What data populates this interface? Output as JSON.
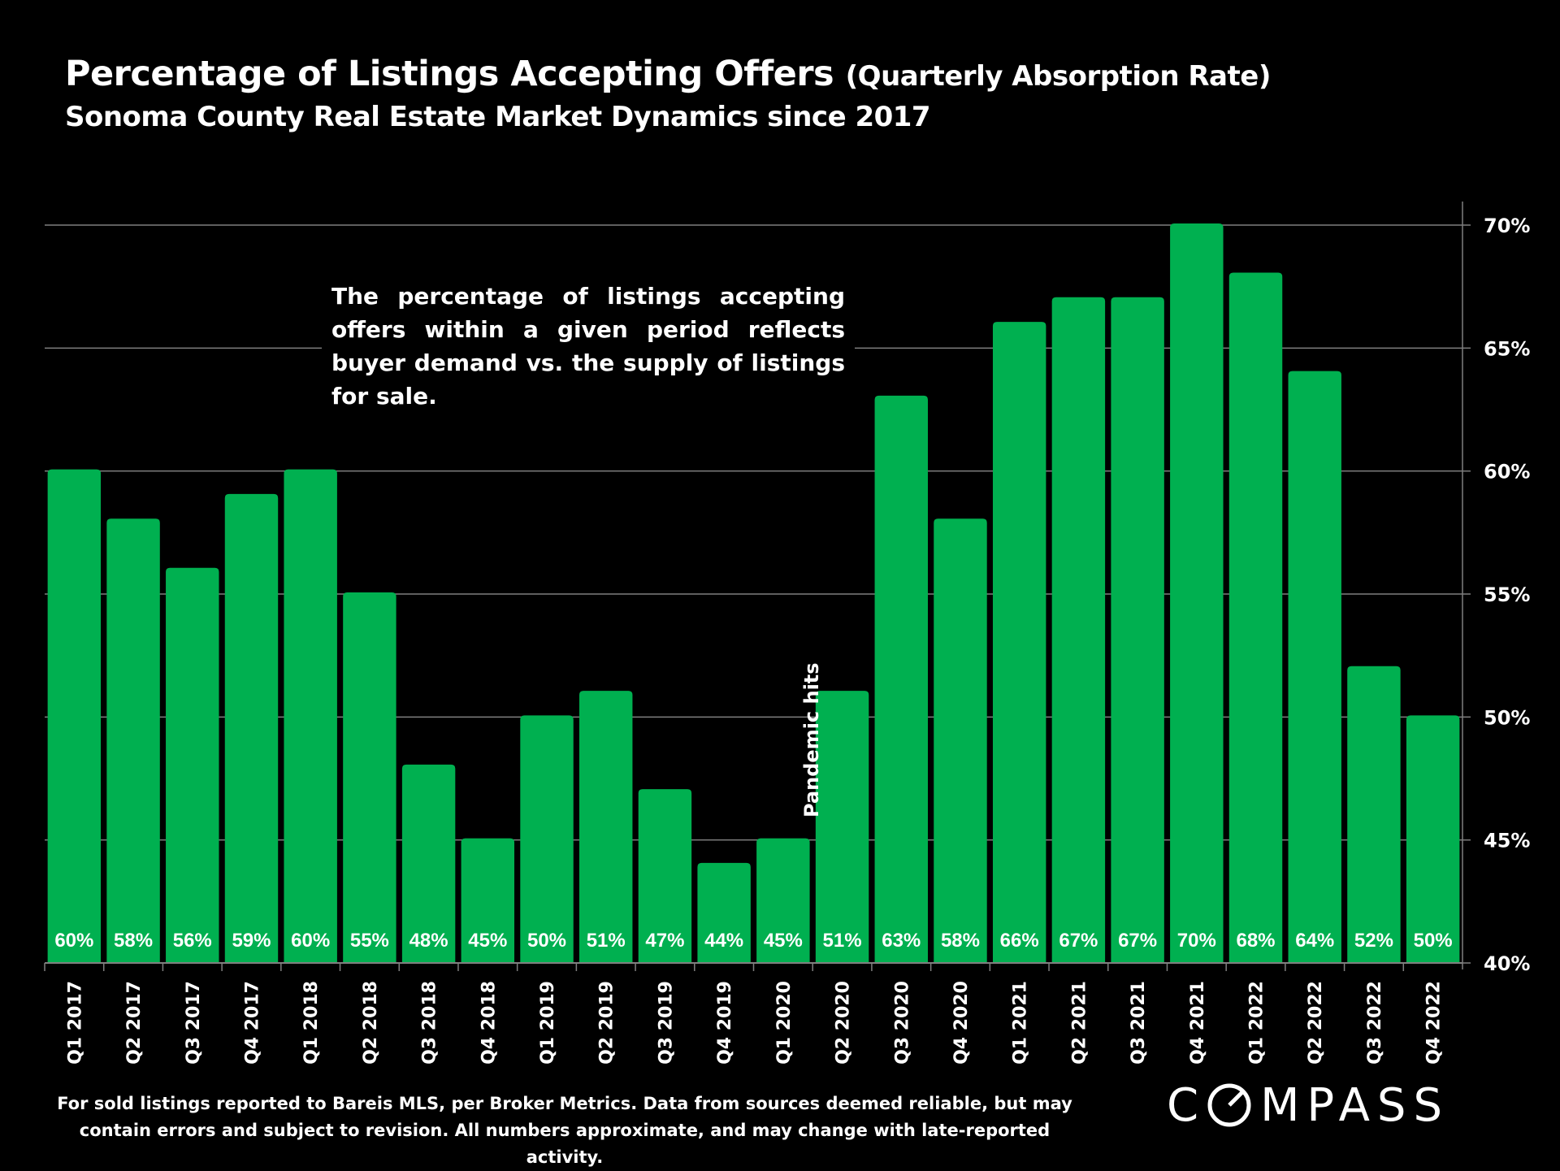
{
  "chart_data": {
    "type": "bar",
    "title": "Percentage of Listings Accepting Offers",
    "title_suffix": "(Quarterly Absorption Rate)",
    "subtitle": "Sonoma County Real Estate Market Dynamics since 2017",
    "categories": [
      "Q1 2017",
      "Q2 2017",
      "Q3 2017",
      "Q4 2017",
      "Q1 2018",
      "Q2 2018",
      "Q3 2018",
      "Q4 2018",
      "Q1 2019",
      "Q2 2019",
      "Q3 2019",
      "Q4 2019",
      "Q1 2020",
      "Q2 2020",
      "Q3 2020",
      "Q4 2020",
      "Q1 2021",
      "Q2 2021",
      "Q3 2021",
      "Q4 2021",
      "Q1 2022",
      "Q2 2022",
      "Q3 2022",
      "Q4 2022"
    ],
    "values": [
      60,
      58,
      56,
      59,
      60,
      55,
      48,
      45,
      50,
      51,
      47,
      44,
      45,
      51,
      63,
      58,
      66,
      67,
      67,
      70,
      68,
      64,
      52,
      50
    ],
    "data_labels": [
      "60%",
      "58%",
      "56%",
      "59%",
      "60%",
      "55%",
      "48%",
      "45%",
      "50%",
      "51%",
      "47%",
      "44%",
      "45%",
      "51%",
      "63%",
      "58%",
      "66%",
      "67%",
      "67%",
      "70%",
      "68%",
      "64%",
      "52%",
      "50%"
    ],
    "ylim": [
      40,
      70
    ],
    "yticks": [
      "40%",
      "45%",
      "50%",
      "55%",
      "60%",
      "65%",
      "70%"
    ],
    "y_axis_side": "right",
    "grid": true,
    "bar_color": "#00b050",
    "xlabel": "",
    "ylabel": "",
    "annotations": {
      "note": "The percentage of listings accepting offers within a given period reflects buyer demand vs. the supply of listings for sale.",
      "pandemic": "Pandemic hits"
    }
  },
  "footer": {
    "line1": "For sold listings reported to Bareis MLS, per Broker Metrics. Data from sources deemed reliable, but may",
    "line2": "contain errors and subject to revision. All numbers approximate, and may change with late-reported activity."
  },
  "logo": {
    "text": "COMPASS"
  }
}
